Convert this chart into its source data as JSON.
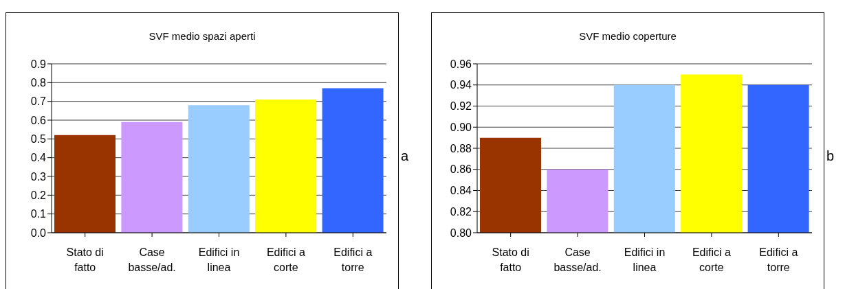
{
  "chart_data": [
    {
      "type": "bar",
      "title": "SVF medio spazi aperti",
      "categories": [
        "Stato di fatto",
        "Case basse/ad.",
        "Edifici in linea",
        "Edifici a corte",
        "Edifici a torre"
      ],
      "values": [
        0.52,
        0.59,
        0.68,
        0.71,
        0.77
      ],
      "colors": [
        "#993300",
        "#cc99ff",
        "#99ccff",
        "#ffff00",
        "#3366ff"
      ],
      "ylim": [
        0,
        0.9
      ],
      "yticks": [
        {
          "value": 0,
          "label": "0.0"
        },
        0.1,
        0.2,
        0.3,
        0.4,
        0.5,
        0.6,
        0.7,
        0.8,
        0.9
      ],
      "grid": "y",
      "legend": false,
      "annotations": [
        "a"
      ]
    },
    {
      "type": "bar",
      "title": "SVF medio coperture",
      "categories": [
        "Stato di fatto",
        "Case basse/ad.",
        "Edifici in linea",
        "Edifici a corte",
        "Edifici a torre"
      ],
      "values": [
        0.89,
        0.86,
        0.94,
        0.95,
        0.94
      ],
      "colors": [
        "#993300",
        "#cc99ff",
        "#99ccff",
        "#ffff00",
        "#3366ff"
      ],
      "ylim": [
        0.8,
        0.96
      ],
      "yticks": [
        {
          "value": 0.8,
          "label": "0.80"
        },
        {
          "value": 0.82,
          "label": "0.82"
        },
        {
          "value": 0.84,
          "label": "0.84"
        },
        {
          "value": 0.86,
          "label": "0.86"
        },
        {
          "value": 0.88,
          "label": "0.88"
        },
        {
          "value": 0.9,
          "label": "0.90"
        },
        {
          "value": 0.92,
          "label": "0.92"
        },
        {
          "value": 0.94,
          "label": "0.94"
        },
        {
          "value": 0.96,
          "label": "0.96"
        }
      ],
      "grid": "y",
      "legend": false,
      "annotations": [
        "b"
      ]
    }
  ]
}
